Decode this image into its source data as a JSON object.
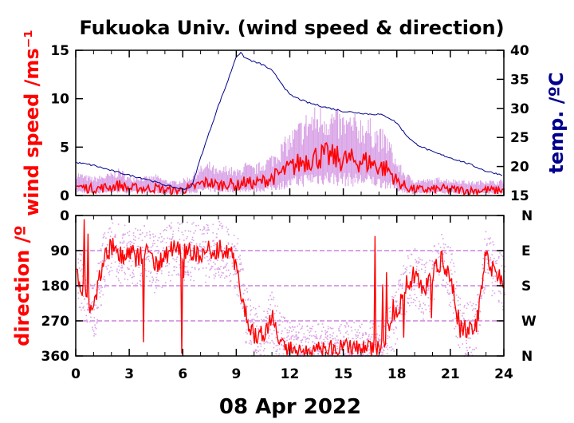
{
  "title": "Fukuoka Univ. (wind speed & direction)",
  "date_label": "08 Apr 2022",
  "colors": {
    "wind": "#ff0000",
    "wind_range": "#d9a2e6",
    "temperature": "#00008b",
    "axes": "#000000"
  },
  "chart_data": [
    {
      "type": "line",
      "panel": "top",
      "title": "Fukuoka Univ. (wind speed & direction)",
      "xlabel": "08 Apr 2022",
      "ylabel": "wind speed /ms⁻¹",
      "y2label": "temp. /ºC",
      "xlim": [
        0,
        24
      ],
      "ylim": [
        0,
        15
      ],
      "y2lim": [
        15,
        40
      ],
      "xticks": [
        "0",
        "3",
        "6",
        "9",
        "12",
        "15",
        "18",
        "21",
        "24"
      ],
      "yticks": [
        "0",
        "5",
        "10",
        "15"
      ],
      "y2ticks": [
        "15",
        "20",
        "25",
        "30",
        "35",
        "40"
      ],
      "grid": false,
      "series": [
        {
          "axis": "left",
          "x": [
            0,
            0.5,
            1,
            1.5,
            2,
            2.5,
            3,
            3.5,
            4,
            4.5,
            5,
            5.5,
            6,
            6.5,
            7,
            7.5,
            8,
            8.5,
            9,
            9.5,
            10,
            10.5,
            11,
            11.5,
            12,
            12.5,
            13,
            13.5,
            14,
            14.5,
            15,
            15.5,
            16,
            16.5,
            17,
            17.5,
            18,
            18.5,
            19,
            19.5,
            20,
            20.5,
            21,
            21.5,
            22,
            22.5,
            23,
            23.5,
            24
          ],
          "values": [
            1.0,
            0.8,
            0.7,
            0.8,
            0.9,
            1.1,
            0.7,
            0.8,
            0.7,
            0.8,
            0.6,
            0.5,
            0.6,
            0.8,
            1.2,
            1.4,
            1.0,
            1.3,
            1.0,
            1.4,
            1.2,
            1.5,
            1.8,
            2.3,
            2.8,
            3.3,
            3.8,
            4.0,
            4.1,
            3.9,
            3.7,
            3.6,
            3.6,
            3.4,
            3.0,
            2.7,
            1.5,
            0.9,
            0.6,
            0.6,
            0.6,
            0.7,
            0.6,
            0.6,
            0.5,
            0.5,
            0.6,
            0.5,
            0.6
          ]
        },
        {
          "axis": "right",
          "x": [
            0,
            1,
            2,
            3,
            4,
            5,
            6,
            6.5,
            7,
            7.5,
            8,
            8.5,
            9,
            9.25,
            9.5,
            10,
            10.5,
            11,
            11.5,
            12,
            13,
            14,
            15,
            16,
            16.5,
            17,
            17.5,
            18,
            18.5,
            19,
            20,
            21,
            22,
            23,
            24
          ],
          "values": [
            20.7,
            20.2,
            19.3,
            18.5,
            17.8,
            16.8,
            16.1,
            16.5,
            21.5,
            26.0,
            30.5,
            34.5,
            39.0,
            39.5,
            38.7,
            38.0,
            37.5,
            36.5,
            34.5,
            32.3,
            31.0,
            30.2,
            29.5,
            29.2,
            29.0,
            29.0,
            28.5,
            27.5,
            25.5,
            24.0,
            22.5,
            21.5,
            20.5,
            19.2,
            18.5
          ]
        }
      ]
    },
    {
      "type": "scatter",
      "panel": "bottom",
      "xlabel": "08 Apr 2022",
      "ylabel": "direction /º",
      "xlim": [
        0,
        24
      ],
      "ylim": [
        0,
        360
      ],
      "inverted_y": true,
      "xticks": [
        "0",
        "3",
        "6",
        "9",
        "12",
        "15",
        "18",
        "21",
        "24"
      ],
      "yticks": [
        "0",
        "90",
        "180",
        "270",
        "360"
      ],
      "y2ticks": [
        "N",
        "E",
        "S",
        "W",
        "N"
      ],
      "grid": false,
      "series": [
        {
          "x": [
            0,
            0.5,
            1,
            1.5,
            2,
            2.5,
            3,
            3.5,
            4,
            4.5,
            5,
            5.5,
            6,
            6.5,
            7,
            7.5,
            8,
            8.5,
            9,
            9.5,
            10,
            10.5,
            11,
            11.5,
            12,
            12.5,
            13,
            13.5,
            14,
            14.5,
            15,
            15.5,
            16,
            16.5,
            17,
            17.5,
            18,
            18.5,
            19,
            19.5,
            20,
            20.5,
            21,
            21.5,
            22,
            22.5,
            23,
            23.5,
            24
          ],
          "values": [
            140,
            200,
            250,
            120,
            80,
            100,
            95,
            110,
            90,
            130,
            100,
            85,
            90,
            90,
            100,
            90,
            85,
            90,
            120,
            250,
            310,
            300,
            260,
            330,
            340,
            350,
            355,
            350,
            350,
            345,
            340,
            345,
            350,
            345,
            340,
            300,
            250,
            180,
            150,
            200,
            150,
            110,
            160,
            280,
            300,
            270,
            100,
            150,
            170
          ]
        }
      ]
    }
  ]
}
